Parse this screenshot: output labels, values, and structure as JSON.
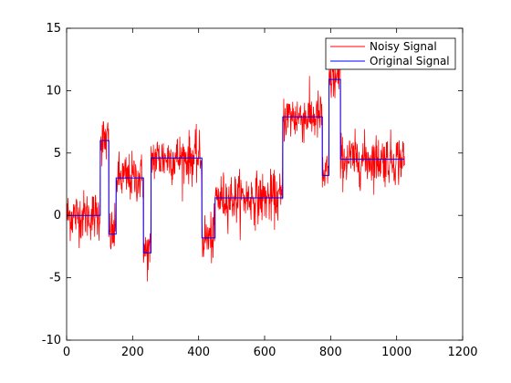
{
  "chart_data": {
    "type": "line",
    "title": "",
    "xlabel": "",
    "ylabel": "",
    "xlim": [
      0,
      1200
    ],
    "ylim": [
      -10,
      15
    ],
    "xticks": [
      0,
      200,
      400,
      600,
      800,
      1000,
      1200
    ],
    "yticks": [
      -10,
      -5,
      0,
      5,
      10,
      15
    ],
    "grid": false,
    "legend_position": "top-right",
    "noise_std": 1.0,
    "series": [
      {
        "name": "Noisy Signal",
        "color": "#ff0000",
        "description": "original signal plus random noise, 1024 samples"
      },
      {
        "name": "Original Signal",
        "color": "#0000ff",
        "steps": [
          {
            "x0": 1,
            "x1": 102,
            "y": 0
          },
          {
            "x0": 102,
            "x1": 128,
            "y": 6
          },
          {
            "x0": 128,
            "x1": 150,
            "y": -1.5
          },
          {
            "x0": 150,
            "x1": 233,
            "y": 3
          },
          {
            "x0": 233,
            "x1": 256,
            "y": -3
          },
          {
            "x0": 256,
            "x1": 410,
            "y": 4.6
          },
          {
            "x0": 410,
            "x1": 450,
            "y": -1.8
          },
          {
            "x0": 450,
            "x1": 655,
            "y": 1.4
          },
          {
            "x0": 655,
            "x1": 775,
            "y": 7.9
          },
          {
            "x0": 775,
            "x1": 795,
            "y": 3.2
          },
          {
            "x0": 795,
            "x1": 830,
            "y": 10.9
          },
          {
            "x0": 830,
            "x1": 1024,
            "y": 4.5
          }
        ]
      }
    ]
  }
}
